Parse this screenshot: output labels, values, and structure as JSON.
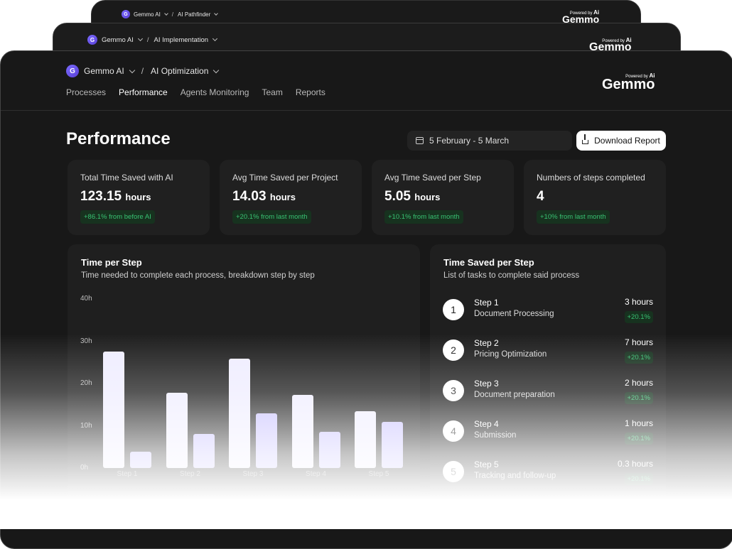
{
  "back_windows": [
    {
      "workspace": "Gemmo AI",
      "project": "AI Pathfinder",
      "brand": "Gemmo",
      "powered": "Powered by",
      "ai": "Ai"
    },
    {
      "workspace": "Gemmo AI",
      "project": "AI Implementation",
      "brand": "Gemmo",
      "powered": "Powered by",
      "ai": "Ai"
    }
  ],
  "header": {
    "logo_letter": "G",
    "workspace": "Gemmo AI",
    "separator": "/",
    "project": "AI Optimization",
    "brand": "Gemmo",
    "powered": "Powered by",
    "ai": "Ai"
  },
  "nav": [
    {
      "label": "Processes",
      "active": false
    },
    {
      "label": "Performance",
      "active": true
    },
    {
      "label": "Agents Monitoring",
      "active": false
    },
    {
      "label": "Team",
      "active": false
    },
    {
      "label": "Reports",
      "active": false
    }
  ],
  "page": {
    "title": "Performance",
    "date_range": "5 February - 5 March",
    "download_label": "Download Report"
  },
  "stats": [
    {
      "label": "Total Time Saved with AI",
      "value": "123.15",
      "unit": "hours",
      "change": "+86.1% from before AI"
    },
    {
      "label": "Avg Time Saved per Project",
      "value": "14.03",
      "unit": "hours",
      "change": "+20.1% from last month"
    },
    {
      "label": "Avg Time Saved per Step",
      "value": "5.05",
      "unit": "hours",
      "change": "+10.1% from last month"
    },
    {
      "label": "Numbers of steps completed",
      "value": "4",
      "unit": "",
      "change": "+10% from last month"
    }
  ],
  "time_per_step": {
    "title": "Time per Step",
    "subtitle": "Time needed to complete each process, breakdown step by step"
  },
  "chart_data": {
    "type": "bar",
    "categories": [
      "Step 1",
      "Step 2",
      "Step 3",
      "Step 4",
      "Step 5"
    ],
    "series": [
      {
        "values": [
          27.5,
          17.8,
          25.8,
          17.3,
          13.5
        ]
      },
      {
        "values": [
          3.8,
          8.0,
          13.0,
          8.5,
          11.0
        ]
      }
    ],
    "yticks": [
      "0h",
      "10h",
      "20h",
      "30h",
      "40h"
    ],
    "ylim": [
      0,
      40
    ],
    "colors": [
      "#efedff",
      "#c8c1ff"
    ]
  },
  "time_saved": {
    "title": "Time Saved per Step",
    "subtitle": "List of tasks to complete said process",
    "steps": [
      {
        "num": "1",
        "label": "Step 1",
        "name": "Document Processing",
        "hours": "3 hours",
        "change": "+20.1%"
      },
      {
        "num": "2",
        "label": "Step 2",
        "name": "Pricing Optimization",
        "hours": "7 hours",
        "change": "+20.1%"
      },
      {
        "num": "3",
        "label": "Step 3",
        "name": "Document preparation",
        "hours": "2 hours",
        "change": "+20.1%"
      },
      {
        "num": "4",
        "label": "Step 4",
        "name": "Submission",
        "hours": "1 hours",
        "change": "+20.1%"
      },
      {
        "num": "5",
        "label": "Step 5",
        "name": "Tracking and follow-up",
        "hours": "0.3 hours",
        "change": "+20.1%"
      }
    ]
  }
}
